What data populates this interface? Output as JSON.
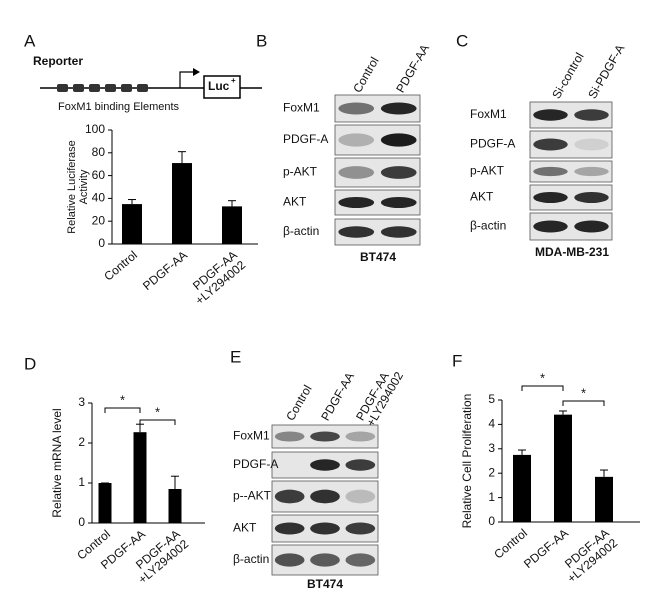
{
  "panel_labels": [
    "A",
    "B",
    "C",
    "D",
    "E",
    "F"
  ],
  "reporter": {
    "title": "Reporter",
    "gene": "Luc",
    "gene_sup": "+",
    "elements": "FoxM1 binding Elements"
  },
  "blots": [
    {
      "columns": [
        "Control",
        "PDGF-AA"
      ],
      "rows": [
        "FoxM1",
        "PDGF-A",
        "p-AKT",
        "AKT",
        "β-actin"
      ],
      "caption": "BT474"
    },
    {
      "columns": [
        "Si-control",
        "Si-PDGF-A"
      ],
      "rows": [
        "FoxM1",
        "PDGF-A",
        "p-AKT",
        "AKT",
        "β-actin"
      ],
      "caption": "MDA-MB-231"
    },
    {
      "columns": [
        "Control",
        "PDGF-AA",
        "PDGF-AA +LY294002"
      ],
      "rows": [
        "FoxM1",
        "PDGF-A",
        "p--AKT",
        "AKT",
        "β-actin"
      ],
      "caption": "BT474"
    }
  ],
  "chart_data": [
    {
      "type": "bar",
      "y_label": "Relative Luciferase Activity",
      "categories": [
        "Control",
        "PDGF-AA",
        "PDGF-AA +LY294002"
      ],
      "values": [
        35,
        71,
        33
      ],
      "errors": [
        4,
        10,
        5
      ],
      "color": "#000000",
      "ylim": [
        0,
        100
      ],
      "yticks": [
        0,
        20,
        40,
        60,
        80,
        100
      ]
    },
    {
      "type": "bar",
      "y_label": "Relative mRNA level",
      "categories": [
        "Control",
        "PDGF-AA",
        "PDGF-AA +LY294002"
      ],
      "values": [
        1,
        2.27,
        0.85
      ],
      "errors": [
        0,
        0.2,
        0.32
      ],
      "color": "#000000",
      "ylim": [
        0,
        3
      ],
      "yticks": [
        0,
        1,
        2,
        3
      ],
      "annotations": [
        {
          "text": "*",
          "between": [
            0,
            1
          ]
        },
        {
          "text": "*",
          "between": [
            1,
            2
          ]
        }
      ]
    },
    {
      "type": "bar",
      "y_label": "Relative Cell Proliferation",
      "categories": [
        "Control",
        "PDGF-AA",
        "PDGF-AA +LY294002"
      ],
      "values": [
        2.75,
        4.4,
        1.85
      ],
      "errors": [
        0.2,
        0.15,
        0.28
      ],
      "color": "#000000",
      "ylim": [
        0,
        5
      ],
      "yticks": [
        0,
        1,
        2,
        3,
        4,
        5
      ],
      "annotations": [
        {
          "text": "*",
          "between": [
            0,
            1
          ]
        },
        {
          "text": "*",
          "between": [
            1,
            2
          ]
        }
      ]
    }
  ]
}
